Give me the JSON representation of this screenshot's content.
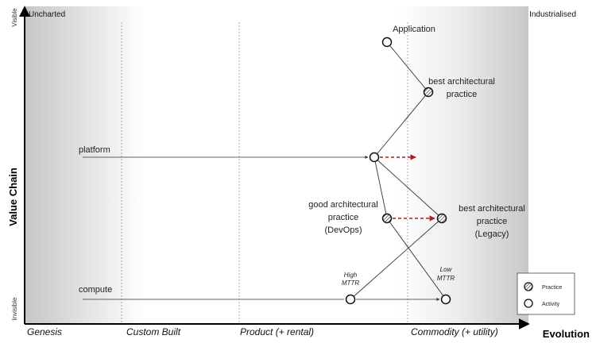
{
  "map": {
    "corner_left": "Uncharted",
    "corner_right": "Industrialised",
    "y_axis": {
      "title": "Value Chain",
      "top": "Visible",
      "bottom": "Invisible"
    },
    "x_axis": {
      "title": "Evolution",
      "stages": [
        "Genesis",
        "Custom Built",
        "Product (+ rental)",
        "Commodity (+ utility)"
      ]
    },
    "components": {
      "application": "Application",
      "best_practice_top_line1": "best architectural",
      "best_practice_top_line2": "practice",
      "platform": "platform",
      "good_practice_line1": "good architectural",
      "good_practice_line2": "practice",
      "good_practice_line3": "(DevOps)",
      "best_practice_legacy_line1": "best architectural",
      "best_practice_legacy_line2": "practice",
      "best_practice_legacy_line3": "(Legacy)",
      "compute": "compute"
    },
    "annotations": {
      "high_mttr_line1": "High",
      "high_mttr_line2": "MTTR",
      "low_mttr_line1": "Low",
      "low_mttr_line2": "MTTR"
    },
    "legend": {
      "practice": "Practice",
      "activity": "Activity"
    },
    "colors": {
      "movement_arrow": "#b01c1c",
      "line": "#333333"
    }
  }
}
